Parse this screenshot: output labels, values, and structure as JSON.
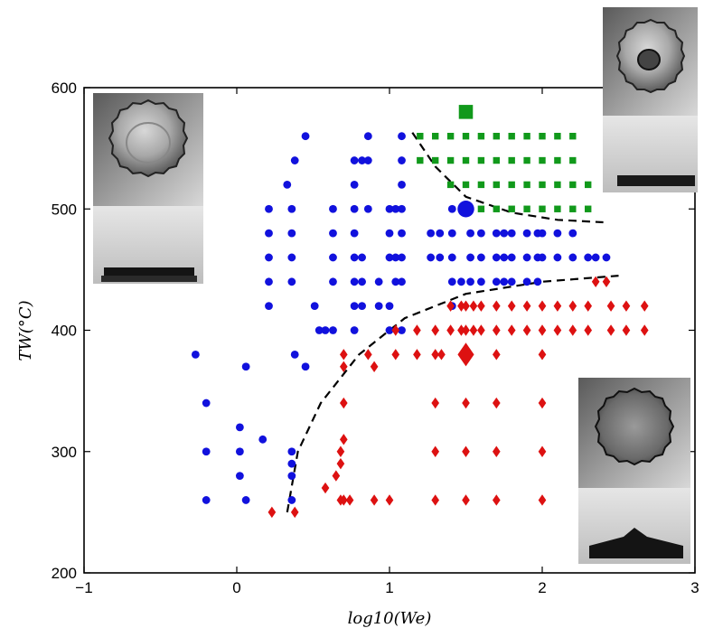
{
  "chart_data": {
    "type": "scatter",
    "title": "",
    "xlabel": "log10(We)",
    "ylabel": "TW(°C)",
    "xlim": [
      -1,
      3
    ],
    "ylim": [
      200,
      600
    ],
    "x_ticks": [
      -1,
      0,
      1,
      2,
      3
    ],
    "y_ticks": [
      200,
      300,
      400,
      500,
      600
    ],
    "grid": false,
    "legend": "none",
    "colors": {
      "circle": "#1111dd",
      "diamond": "#dd1111",
      "square": "#11991b",
      "boundary": "#000000"
    },
    "series": [
      {
        "marker": "circle",
        "color": "#1111dd",
        "points": [
          [
            -0.27,
            380
          ],
          [
            -0.2,
            340
          ],
          [
            -0.2,
            300
          ],
          [
            -0.2,
            260
          ],
          [
            0.02,
            320
          ],
          [
            0.02,
            300
          ],
          [
            0.02,
            280
          ],
          [
            0.06,
            370
          ],
          [
            0.06,
            260
          ],
          [
            0.17,
            310
          ],
          [
            0.21,
            500
          ],
          [
            0.21,
            480
          ],
          [
            0.21,
            460
          ],
          [
            0.21,
            440
          ],
          [
            0.21,
            420
          ],
          [
            0.33,
            520
          ],
          [
            0.36,
            500
          ],
          [
            0.36,
            480
          ],
          [
            0.36,
            460
          ],
          [
            0.36,
            440
          ],
          [
            0.36,
            300
          ],
          [
            0.36,
            290
          ],
          [
            0.36,
            280
          ],
          [
            0.36,
            260
          ],
          [
            0.38,
            540
          ],
          [
            0.38,
            380
          ],
          [
            0.45,
            560
          ],
          [
            0.45,
            370
          ],
          [
            0.51,
            420
          ],
          [
            0.54,
            400
          ],
          [
            0.58,
            400
          ],
          [
            0.63,
            500
          ],
          [
            0.63,
            480
          ],
          [
            0.63,
            460
          ],
          [
            0.63,
            440
          ],
          [
            0.63,
            400
          ],
          [
            0.77,
            540
          ],
          [
            0.77,
            520
          ],
          [
            0.77,
            500
          ],
          [
            0.77,
            480
          ],
          [
            0.77,
            460
          ],
          [
            0.77,
            440
          ],
          [
            0.77,
            420
          ],
          [
            0.77,
            400
          ],
          [
            0.82,
            540
          ],
          [
            0.82,
            460
          ],
          [
            0.82,
            440
          ],
          [
            0.82,
            420
          ],
          [
            0.86,
            560
          ],
          [
            0.86,
            540
          ],
          [
            0.86,
            500
          ],
          [
            0.93,
            440
          ],
          [
            0.93,
            420
          ],
          [
            1.0,
            500
          ],
          [
            1.0,
            480
          ],
          [
            1.0,
            460
          ],
          [
            1.0,
            420
          ],
          [
            1.0,
            400
          ],
          [
            1.04,
            500
          ],
          [
            1.04,
            460
          ],
          [
            1.04,
            440
          ],
          [
            1.08,
            560
          ],
          [
            1.08,
            540
          ],
          [
            1.08,
            520
          ],
          [
            1.08,
            500
          ],
          [
            1.08,
            480
          ],
          [
            1.08,
            460
          ],
          [
            1.08,
            440
          ],
          [
            1.08,
            400
          ],
          [
            1.27,
            480
          ],
          [
            1.27,
            460
          ],
          [
            1.33,
            480
          ],
          [
            1.33,
            460
          ],
          [
            1.41,
            500
          ],
          [
            1.41,
            480
          ],
          [
            1.41,
            460
          ],
          [
            1.41,
            440
          ],
          [
            1.41,
            420
          ],
          [
            1.47,
            440
          ],
          [
            1.53,
            480
          ],
          [
            1.53,
            460
          ],
          [
            1.53,
            440
          ],
          [
            1.6,
            480
          ],
          [
            1.6,
            460
          ],
          [
            1.6,
            440
          ],
          [
            1.7,
            480
          ],
          [
            1.7,
            460
          ],
          [
            1.7,
            440
          ],
          [
            1.75,
            480
          ],
          [
            1.75,
            460
          ],
          [
            1.75,
            440
          ],
          [
            1.8,
            480
          ],
          [
            1.8,
            460
          ],
          [
            1.8,
            440
          ],
          [
            1.9,
            480
          ],
          [
            1.9,
            460
          ],
          [
            1.9,
            440
          ],
          [
            1.97,
            480
          ],
          [
            1.97,
            460
          ],
          [
            1.97,
            440
          ],
          [
            2.0,
            480
          ],
          [
            2.0,
            460
          ],
          [
            2.1,
            480
          ],
          [
            2.1,
            460
          ],
          [
            2.2,
            480
          ],
          [
            2.2,
            460
          ],
          [
            2.3,
            460
          ],
          [
            2.35,
            460
          ],
          [
            2.42,
            460
          ]
        ],
        "highlight": [
          1.5,
          500
        ]
      },
      {
        "marker": "diamond",
        "color": "#dd1111",
        "points": [
          [
            0.23,
            250
          ],
          [
            0.38,
            250
          ],
          [
            0.58,
            270
          ],
          [
            0.65,
            280
          ],
          [
            0.68,
            300
          ],
          [
            0.68,
            290
          ],
          [
            0.68,
            260
          ],
          [
            0.7,
            380
          ],
          [
            0.7,
            370
          ],
          [
            0.7,
            340
          ],
          [
            0.7,
            310
          ],
          [
            0.7,
            260
          ],
          [
            0.74,
            260
          ],
          [
            0.86,
            380
          ],
          [
            0.9,
            370
          ],
          [
            0.9,
            260
          ],
          [
            1.0,
            260
          ],
          [
            1.04,
            400
          ],
          [
            1.04,
            380
          ],
          [
            1.18,
            400
          ],
          [
            1.18,
            380
          ],
          [
            1.3,
            400
          ],
          [
            1.3,
            380
          ],
          [
            1.3,
            340
          ],
          [
            1.3,
            300
          ],
          [
            1.3,
            260
          ],
          [
            1.34,
            380
          ],
          [
            1.4,
            420
          ],
          [
            1.4,
            400
          ],
          [
            1.47,
            420
          ],
          [
            1.47,
            400
          ],
          [
            1.5,
            420
          ],
          [
            1.5,
            400
          ],
          [
            1.5,
            340
          ],
          [
            1.5,
            300
          ],
          [
            1.5,
            260
          ],
          [
            1.55,
            420
          ],
          [
            1.55,
            400
          ],
          [
            1.6,
            420
          ],
          [
            1.6,
            400
          ],
          [
            1.7,
            420
          ],
          [
            1.7,
            400
          ],
          [
            1.7,
            380
          ],
          [
            1.7,
            340
          ],
          [
            1.7,
            300
          ],
          [
            1.7,
            260
          ],
          [
            1.8,
            420
          ],
          [
            1.8,
            400
          ],
          [
            1.9,
            420
          ],
          [
            1.9,
            400
          ],
          [
            2.0,
            420
          ],
          [
            2.0,
            400
          ],
          [
            2.0,
            380
          ],
          [
            2.0,
            340
          ],
          [
            2.0,
            300
          ],
          [
            2.0,
            260
          ],
          [
            2.1,
            420
          ],
          [
            2.1,
            400
          ],
          [
            2.2,
            420
          ],
          [
            2.2,
            400
          ],
          [
            2.3,
            420
          ],
          [
            2.3,
            400
          ],
          [
            2.35,
            440
          ],
          [
            2.42,
            440
          ],
          [
            2.45,
            420
          ],
          [
            2.45,
            400
          ],
          [
            2.55,
            420
          ],
          [
            2.55,
            400
          ],
          [
            2.67,
            420
          ],
          [
            2.67,
            400
          ]
        ],
        "highlight": [
          1.5,
          380
        ]
      },
      {
        "marker": "square",
        "color": "#11991b",
        "points": [
          [
            1.2,
            560
          ],
          [
            1.3,
            560
          ],
          [
            1.4,
            560
          ],
          [
            1.5,
            560
          ],
          [
            1.6,
            560
          ],
          [
            1.7,
            560
          ],
          [
            1.8,
            560
          ],
          [
            1.9,
            560
          ],
          [
            2.0,
            560
          ],
          [
            2.1,
            560
          ],
          [
            2.2,
            560
          ],
          [
            1.2,
            540
          ],
          [
            1.3,
            540
          ],
          [
            1.4,
            540
          ],
          [
            1.5,
            540
          ],
          [
            1.6,
            540
          ],
          [
            1.7,
            540
          ],
          [
            1.8,
            540
          ],
          [
            1.9,
            540
          ],
          [
            2.0,
            540
          ],
          [
            2.1,
            540
          ],
          [
            2.2,
            540
          ],
          [
            1.4,
            520
          ],
          [
            1.5,
            520
          ],
          [
            1.6,
            520
          ],
          [
            1.7,
            520
          ],
          [
            1.8,
            520
          ],
          [
            1.9,
            520
          ],
          [
            2.0,
            520
          ],
          [
            2.1,
            520
          ],
          [
            2.2,
            520
          ],
          [
            2.3,
            520
          ],
          [
            1.6,
            500
          ],
          [
            1.7,
            500
          ],
          [
            1.8,
            500
          ],
          [
            1.9,
            500
          ],
          [
            2.0,
            500
          ],
          [
            2.1,
            500
          ],
          [
            2.2,
            500
          ],
          [
            2.3,
            500
          ]
        ],
        "highlight": [
          1.5,
          580
        ]
      }
    ],
    "boundaries": [
      {
        "style": "dashed",
        "points": [
          [
            0.33,
            250
          ],
          [
            0.4,
            300
          ],
          [
            0.55,
            340
          ],
          [
            0.8,
            380
          ],
          [
            1.1,
            410
          ],
          [
            1.5,
            430
          ],
          [
            2.0,
            440
          ],
          [
            2.5,
            445
          ]
        ]
      },
      {
        "style": "dashed",
        "points": [
          [
            1.15,
            563
          ],
          [
            1.3,
            535
          ],
          [
            1.5,
            510
          ],
          [
            1.8,
            497
          ],
          [
            2.1,
            491
          ],
          [
            2.4,
            489
          ]
        ]
      }
    ],
    "insets": [
      {
        "corner": "top-left",
        "caption": ""
      },
      {
        "corner": "top-right",
        "caption": ""
      },
      {
        "corner": "bottom-right",
        "caption": ""
      }
    ]
  }
}
